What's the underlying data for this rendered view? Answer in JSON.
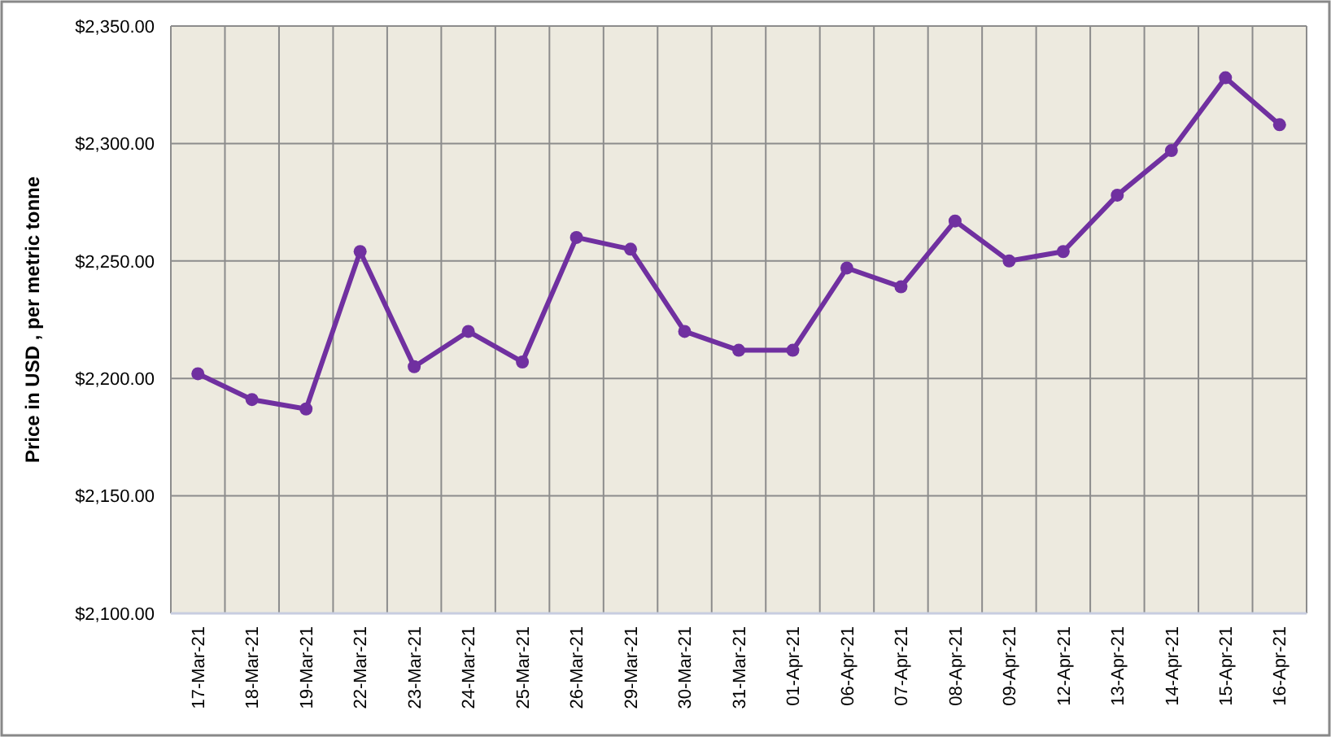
{
  "chart_data": {
    "type": "line",
    "ylabel": "Price in USD , per metric tonne",
    "categories": [
      "17-Mar-21",
      "18-Mar-21",
      "19-Mar-21",
      "22-Mar-21",
      "23-Mar-21",
      "24-Mar-21",
      "25-Mar-21",
      "26-Mar-21",
      "29-Mar-21",
      "30-Mar-21",
      "31-Mar-21",
      "01-Apr-21",
      "06-Apr-21",
      "07-Apr-21",
      "08-Apr-21",
      "09-Apr-21",
      "12-Apr-21",
      "13-Apr-21",
      "14-Apr-21",
      "15-Apr-21",
      "16-Apr-21"
    ],
    "series": [
      {
        "color": "#7030a0",
        "values": [
          2202,
          2191,
          2187,
          2254,
          2205,
          2220,
          2207,
          2260,
          2255,
          2220,
          2212,
          2212,
          2247,
          2239,
          2267,
          2250,
          2254,
          2278,
          2297,
          2328,
          2308
        ]
      }
    ],
    "ylim": [
      2100,
      2350
    ],
    "yticks": [
      {
        "value": 2100,
        "label": "$2,100.00"
      },
      {
        "value": 2150,
        "label": "$2,150.00"
      },
      {
        "value": 2200,
        "label": "$2,200.00"
      },
      {
        "value": 2250,
        "label": "$2,250.00"
      },
      {
        "value": 2300,
        "label": "$2,300.00"
      },
      {
        "value": 2350,
        "label": "$2,350.00"
      }
    ],
    "grid": true,
    "marker": "circle",
    "line_style": "solid"
  }
}
